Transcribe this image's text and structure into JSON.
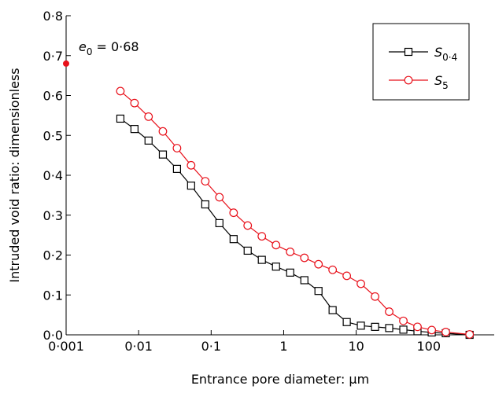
{
  "chart_data": {
    "type": "line",
    "xlabel": "Entrance pore diameter: µm",
    "ylabel": "Intruded void ratio: dimensionless",
    "xscale": "log",
    "xlim": [
      0.001,
      800
    ],
    "ylim": [
      0,
      0.8
    ],
    "xticks": [
      {
        "value": 0.001,
        "label": "0·001"
      },
      {
        "value": 0.01,
        "label": "0·01"
      },
      {
        "value": 0.1,
        "label": "0·1"
      },
      1,
      10,
      100
    ],
    "yticks": [
      {
        "value": 0,
        "label": "0·0"
      },
      {
        "value": 0.1,
        "label": "0·1"
      },
      {
        "value": 0.2,
        "label": "0·2"
      },
      {
        "value": 0.3,
        "label": "0·3"
      },
      {
        "value": 0.4,
        "label": "0·4"
      },
      {
        "value": 0.5,
        "label": "0·5"
      },
      {
        "value": 0.6,
        "label": "0·6"
      },
      {
        "value": 0.7,
        "label": "0·7"
      },
      {
        "value": 0.8,
        "label": "0·8"
      }
    ],
    "legend": "upper right",
    "x": [
      0.0056,
      0.00877,
      0.0137,
      0.0216,
      0.0338,
      0.0529,
      0.083,
      0.13,
      0.204,
      0.319,
      0.5,
      0.784,
      1.23,
      1.93,
      3.02,
      4.73,
      7.41,
      11.6,
      18.2,
      28.5,
      44.7,
      70,
      110,
      172,
      366
    ],
    "series": [
      {
        "name": "S",
        "name_subscript": "0·4",
        "color": "#000000",
        "marker": "square",
        "values": [
          0.542,
          0.516,
          0.487,
          0.452,
          0.416,
          0.374,
          0.327,
          0.28,
          0.24,
          0.211,
          0.188,
          0.171,
          0.156,
          0.137,
          0.11,
          0.062,
          0.032,
          0.023,
          0.02,
          0.017,
          0.013,
          0.009,
          0.006,
          0.004,
          0
        ]
      },
      {
        "name": "S",
        "name_subscript": "5",
        "color": "#e8101a",
        "marker": "circle",
        "values": [
          0.611,
          0.581,
          0.547,
          0.51,
          0.468,
          0.425,
          0.385,
          0.345,
          0.306,
          0.274,
          0.247,
          0.225,
          0.208,
          0.193,
          0.177,
          0.163,
          0.148,
          0.128,
          0.096,
          0.058,
          0.035,
          0.02,
          0.012,
          0.007,
          0.001
        ]
      }
    ],
    "annotation": {
      "x": 0.001,
      "y": 0.68,
      "color": "#e8101a",
      "text": "e",
      "subscript": "0",
      "suffix": "= 0·68"
    }
  }
}
